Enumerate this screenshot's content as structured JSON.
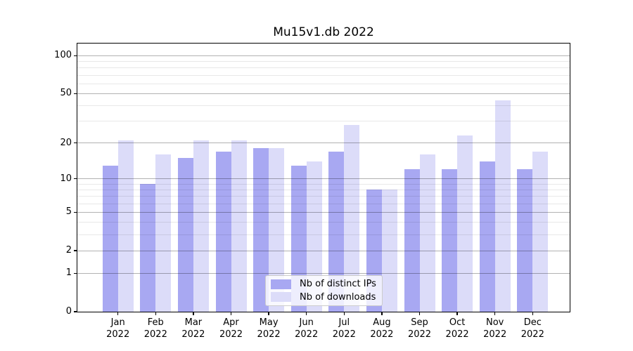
{
  "chart_data": {
    "type": "bar",
    "title": "Mu15v1.db 2022",
    "categories": [
      "Jan",
      "Feb",
      "Mar",
      "Apr",
      "May",
      "Jun",
      "Jul",
      "Aug",
      "Sep",
      "Oct",
      "Nov",
      "Dec"
    ],
    "year_label": "2022",
    "series": [
      {
        "name": "Nb of distinct IPs",
        "color": "#a8a8f2",
        "values": [
          13,
          9,
          15,
          17,
          18,
          13,
          17,
          8,
          12,
          12,
          14,
          12
        ]
      },
      {
        "name": "Nb of downloads",
        "color": "#dcdcf9",
        "values": [
          21,
          16,
          21,
          21,
          18,
          14,
          28,
          8,
          16,
          23,
          44,
          17
        ]
      }
    ],
    "y_axis": {
      "scale": "log10(1+v)",
      "major_ticks": [
        0,
        1,
        2,
        5,
        10,
        20,
        50,
        100
      ],
      "tick_labels": [
        "0",
        "1",
        "2",
        "5",
        "10",
        "20",
        "50",
        "100"
      ],
      "minor_gridlines": [
        3,
        4,
        6,
        7,
        8,
        9,
        30,
        40,
        60,
        70,
        80,
        90
      ],
      "ylim": [
        0,
        125
      ]
    },
    "grid": "on",
    "legend": {
      "position": "lower center"
    }
  }
}
